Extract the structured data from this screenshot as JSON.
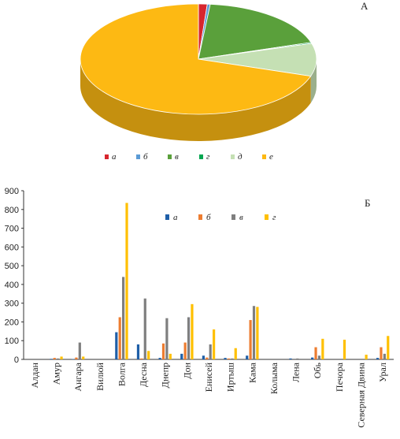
{
  "chart_data": [
    {
      "type": "pie",
      "panel_label": "А",
      "labels": [
        "а",
        "б",
        "в",
        "г",
        "д",
        "е"
      ],
      "values": [
        1.2,
        0.4,
        18.5,
        0.3,
        9.6,
        70.0
      ],
      "colors": [
        "#d7262e",
        "#5b9bd5",
        "#5aa03b",
        "#00a650",
        "#c5e0b4",
        "#fdb913"
      ],
      "style": "3d-exploded",
      "legend_position": "bottom"
    },
    {
      "type": "bar",
      "panel_label": "Б",
      "categories": [
        "Алдан",
        "Амур",
        "Ангара",
        "Вилюй",
        "Волга",
        "Десна",
        "Днепр",
        "Дон",
        "Енисей",
        "Иртыш",
        "Кама",
        "Колыма",
        "Лена",
        "Обь",
        "Печора",
        "Северная Двина",
        "Урал"
      ],
      "series": [
        {
          "name": "а",
          "color": "#1f5fa8",
          "values": [
            0,
            3,
            2,
            0,
            145,
            80,
            8,
            30,
            20,
            8,
            20,
            0,
            5,
            10,
            0,
            0,
            8
          ]
        },
        {
          "name": "б",
          "color": "#ed7d31",
          "values": [
            0,
            8,
            10,
            0,
            225,
            5,
            85,
            90,
            10,
            5,
            210,
            0,
            0,
            65,
            0,
            0,
            65
          ]
        },
        {
          "name": "в",
          "color": "#7f7f7f",
          "values": [
            0,
            5,
            90,
            0,
            440,
            325,
            220,
            225,
            80,
            5,
            285,
            0,
            5,
            20,
            0,
            0,
            30
          ]
        },
        {
          "name": "г",
          "color": "#ffc000",
          "values": [
            0,
            15,
            15,
            0,
            835,
            45,
            30,
            295,
            160,
            60,
            280,
            0,
            0,
            110,
            105,
            25,
            125
          ]
        }
      ],
      "ylim": [
        0,
        900
      ],
      "yticks": [
        0,
        100,
        200,
        300,
        400,
        500,
        600,
        700,
        800,
        900
      ],
      "grid": false,
      "legend_position": "top-center"
    }
  ]
}
